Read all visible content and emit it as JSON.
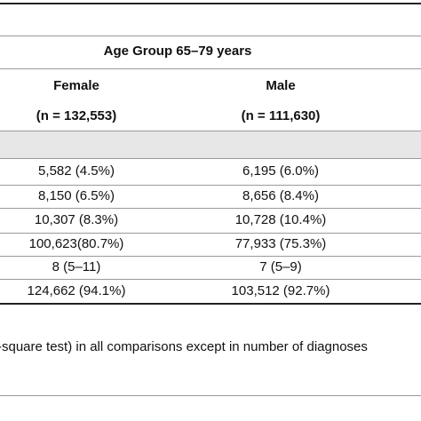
{
  "header": {
    "age_group": "Age Group 65–79 years",
    "female_label": "Female",
    "male_label": "Male",
    "female_n": "(n = 132,553)",
    "male_n": "(n = 111,630)"
  },
  "rows": [
    {
      "female": "5,582 (4.5%)",
      "male": "6,195 (6.0%)"
    },
    {
      "female": "8,150 (6.5%)",
      "male": "8,656 (8.4%)"
    },
    {
      "female": "10,307 (8.3%)",
      "male": "10,728 (10.4%)"
    },
    {
      "female": "100,623(80.7%)",
      "male": "77,933 (75.3%)"
    },
    {
      "female": "8 (5–11)",
      "male": "7 (5–9)"
    },
    {
      "female": "124,662 (94.1%)",
      "male": "103,512 (92.7%)"
    }
  ],
  "footnote": "-square test) in all comparisons except in number of diagnoses"
}
